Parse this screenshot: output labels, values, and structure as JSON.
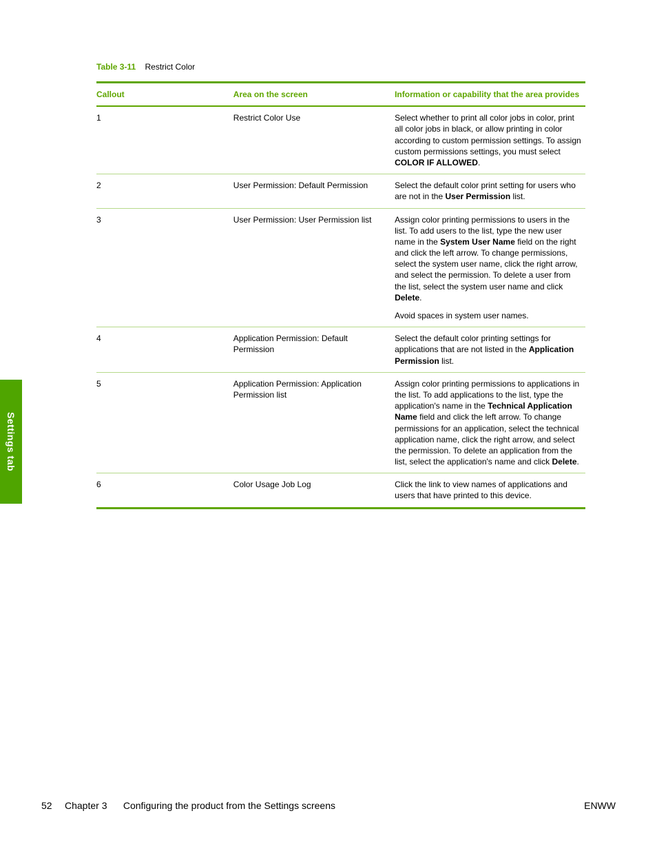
{
  "colors": {
    "accent": "#5fa600",
    "sidebar_bg": "#4fa500",
    "header_text": "#5fa600",
    "rule": "#5fa600",
    "row_border": "#b6d98a",
    "text": "#000000"
  },
  "caption": {
    "num": "Table 3-11",
    "title": "Restrict Color"
  },
  "columns": [
    "Callout",
    "Area on the screen",
    "Information or capability that the area provides"
  ],
  "sidebar_label": "Settings tab",
  "footer": {
    "page": "52",
    "chapter_label": "Chapter 3",
    "chapter_title": "Configuring the product from the Settings screens",
    "right": "ENWW"
  },
  "rows": [
    {
      "callout": "1",
      "area": "Restrict Color Use",
      "desc": [
        [
          {
            "t": "Select whether to print all color jobs in color, print all color jobs in black, or allow printing in color according to custom permission settings. To assign custom permissions settings, you must select "
          },
          {
            "t": "COLOR IF ALLOWED",
            "b": true
          },
          {
            "t": "."
          }
        ]
      ]
    },
    {
      "callout": "2",
      "area": "User Permission: Default Permission",
      "desc": [
        [
          {
            "t": "Select the default color print setting for users who are not in the "
          },
          {
            "t": "User Permission",
            "b": true
          },
          {
            "t": " list."
          }
        ]
      ]
    },
    {
      "callout": "3",
      "area": "User Permission: User Permission list",
      "desc": [
        [
          {
            "t": "Assign color printing permissions to users in the list. To add users to the list, type the new user name in the "
          },
          {
            "t": "System User Name",
            "b": true
          },
          {
            "t": " field on the right and click the left arrow. To change permissions, select the system user name, click the right arrow, and select the permission. To delete a user from the list, select the system user name and click "
          },
          {
            "t": "Delete",
            "b": true
          },
          {
            "t": "."
          }
        ],
        [
          {
            "t": "Avoid spaces in system user names."
          }
        ]
      ]
    },
    {
      "callout": "4",
      "area": "Application Permission: Default Permission",
      "desc": [
        [
          {
            "t": "Select the default color printing settings for applications that are not listed in the "
          },
          {
            "t": "Application Permission",
            "b": true
          },
          {
            "t": " list."
          }
        ]
      ]
    },
    {
      "callout": "5",
      "area": "Application Permission: Application Permission list",
      "desc": [
        [
          {
            "t": "Assign color printing permissions to applications in the list. To add applications to the list, type the application's name in the "
          },
          {
            "t": "Technical Application Name",
            "b": true
          },
          {
            "t": " field and click the left arrow. To change permissions for an application, select the technical application name, click the right arrow, and select the permission. To delete an application from the list, select the application's name and click "
          },
          {
            "t": "Delete",
            "b": true
          },
          {
            "t": "."
          }
        ]
      ]
    },
    {
      "callout": "6",
      "area": "Color Usage Job Log",
      "desc": [
        [
          {
            "t": "Click the link to view names of applications and users that have printed to this device."
          }
        ]
      ]
    }
  ]
}
